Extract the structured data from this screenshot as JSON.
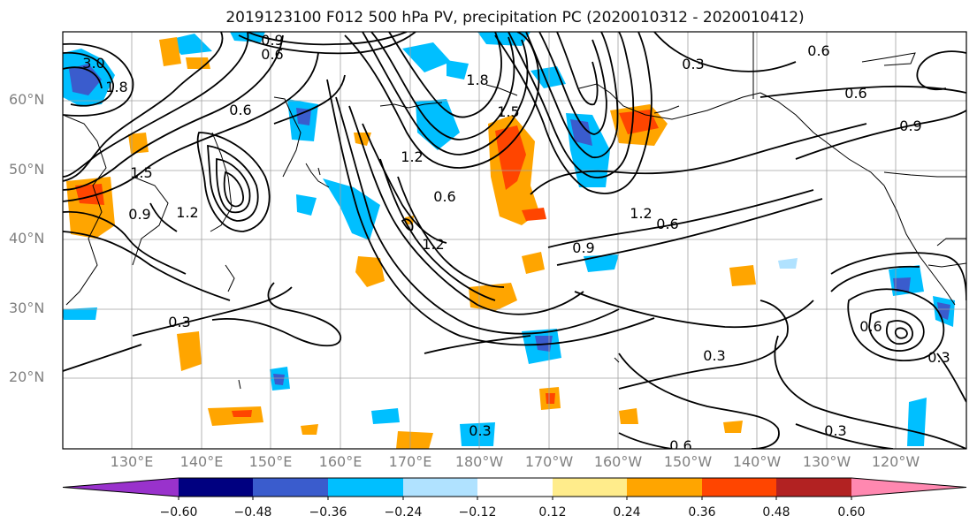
{
  "title": "2019123100 F012 500 hPa PV, precipitation PC (2020010312 - 2020010412)",
  "lat_labels": [
    "60°N",
    "50°N",
    "40°N",
    "30°N",
    "20°N"
  ],
  "lon_labels": [
    "130°E",
    "140°E",
    "150°E",
    "160°E",
    "170°E",
    "180°W",
    "170°W",
    "160°W",
    "150°W",
    "140°W",
    "130°W",
    "120°W"
  ],
  "contour_labels": [
    "3.0",
    "1.8",
    "0.9",
    "0.6",
    "0.6",
    "0.6",
    "0.9",
    "1.2",
    "0.6",
    "1.5",
    "1.8",
    "1.2",
    "0.6",
    "1.2",
    "0.9",
    "0.6",
    "1.2",
    "1.5",
    "0.3",
    "0.3",
    "0.6",
    "0.3",
    "0.6",
    "0.3",
    "0.9",
    "0.3",
    "0.3"
  ],
  "colorbar": {
    "colors": [
      "#9932cc",
      "#000080",
      "#3a5ccd",
      "#00bfff",
      "#b0e2ff",
      "#ffffff",
      "#ffec8b",
      "#ffa500",
      "#ff4500",
      "#b22222",
      "#ff88b0"
    ],
    "ticks": [
      "−0.60",
      "−0.48",
      "−0.36",
      "−0.24",
      "−0.12",
      "0.12",
      "0.24",
      "0.36",
      "0.48",
      "0.60"
    ]
  }
}
